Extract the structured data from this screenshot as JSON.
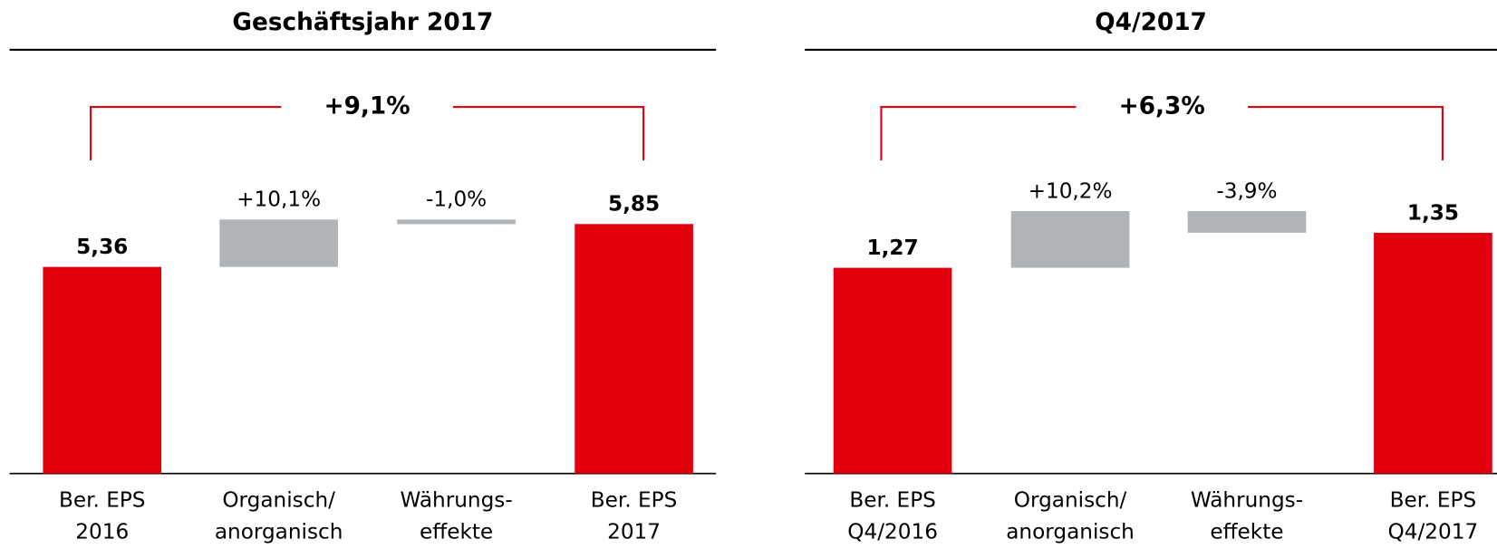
{
  "chart_data": [
    {
      "type": "waterfall",
      "title": "Geschäftsjahr 2017",
      "categories": [
        [
          "Ber. EPS",
          "2016"
        ],
        [
          "Organisch/",
          "anorganisch"
        ],
        [
          "Währungs-",
          "effekte"
        ],
        [
          "Ber. EPS",
          "2017"
        ]
      ],
      "measure": [
        "absolute",
        "relative",
        "relative",
        "total"
      ],
      "values": [
        5.36,
        10.1,
        -1.0,
        5.85
      ],
      "value_labels": [
        "5,36",
        "+10,1%",
        "-1,0%",
        "5,85"
      ],
      "colors": [
        "#e2000f",
        "#b1b4b6",
        "#b1b4b6",
        "#e2000f"
      ],
      "change_label": "+9,1%",
      "change_color": "#e2000f",
      "ylim": [
        3,
        6.5
      ]
    },
    {
      "type": "waterfall",
      "title": "Q4/2017",
      "categories": [
        [
          "Ber. EPS",
          "Q4/2016"
        ],
        [
          "Organisch/",
          "anorganisch"
        ],
        [
          "Währungs-",
          "effekte"
        ],
        [
          "Ber. EPS",
          "Q4/2017"
        ]
      ],
      "measure": [
        "absolute",
        "relative",
        "relative",
        "total"
      ],
      "values": [
        1.27,
        10.2,
        -3.9,
        1.35
      ],
      "value_labels": [
        "1,27",
        "+10,2%",
        "-3,9%",
        "1,35"
      ],
      "colors": [
        "#e2000f",
        "#b1b4b6",
        "#b1b4b6",
        "#e2000f"
      ],
      "change_label": "+6,3%",
      "change_color": "#e2000f",
      "ylim": [
        0.8,
        1.5
      ]
    }
  ]
}
